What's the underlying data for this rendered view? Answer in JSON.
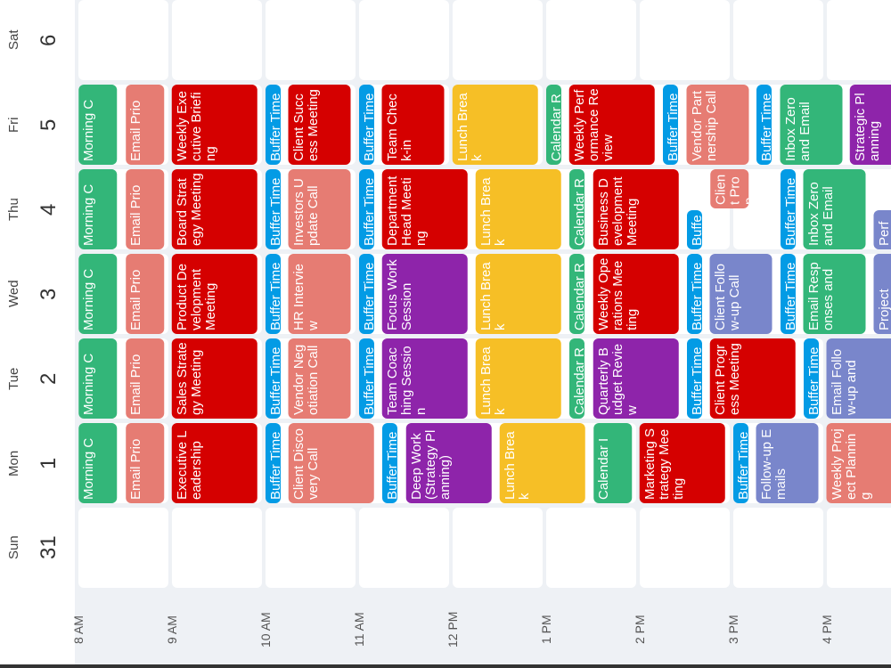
{
  "days": [
    {
      "name": "Sun",
      "number": 31,
      "events": []
    },
    {
      "name": "Mon",
      "number": 1,
      "events": [
        {
          "title": "Morning C"
        },
        {
          "title": "Email Prio"
        },
        {
          "title": "Executive Leadership"
        },
        {
          "title": "Buffer Time"
        },
        {
          "title": "Client Discovery Call"
        },
        {
          "title": "Buffer Time"
        },
        {
          "title": "Deep Work (Strategy Planning)"
        },
        {
          "title": "Lunch Break"
        },
        {
          "title": "Calendar I"
        },
        {
          "title": "Marketing Strategy Meeting"
        },
        {
          "title": "Buffer Time"
        },
        {
          "title": "Follow-up Emails"
        },
        {
          "title": "Weekly Project Planning"
        }
      ]
    },
    {
      "name": "Tue",
      "number": 2,
      "events": [
        {
          "title": "Morning C"
        },
        {
          "title": "Email Prio"
        },
        {
          "title": "Sales Strategy Meeting"
        },
        {
          "title": "Buffer Time"
        },
        {
          "title": "Vendor Negotiation Call"
        },
        {
          "title": "Buffer Time"
        },
        {
          "title": "Team Coaching Session"
        },
        {
          "title": "Lunch Break"
        },
        {
          "title": "Calendar Re"
        },
        {
          "title": "Quarterly Budget Review"
        },
        {
          "title": "Buffer Time"
        },
        {
          "title": "Client Progress Meeting"
        },
        {
          "title": "Buffer Time"
        },
        {
          "title": "Email Follow-up and"
        }
      ]
    },
    {
      "name": "Wed",
      "number": 3,
      "events": [
        {
          "title": "Morning C"
        },
        {
          "title": "Email Prio"
        },
        {
          "title": "Product Development Meeting"
        },
        {
          "title": "Buffer Time"
        },
        {
          "title": "HR Interview"
        },
        {
          "title": "Buffer Time"
        },
        {
          "title": "Focus Work Session"
        },
        {
          "title": "Lunch Break"
        },
        {
          "title": "Calendar Re"
        },
        {
          "title": "Weekly Operations Meeting"
        },
        {
          "title": "Buffer Time"
        },
        {
          "title": "Client Follow-up Call"
        },
        {
          "title": "Buffer Time"
        },
        {
          "title": "Email Responses and"
        },
        {
          "title": "Project"
        }
      ]
    },
    {
      "name": "Thu",
      "number": 4,
      "events": [
        {
          "title": "Morning C"
        },
        {
          "title": "Email Prio"
        },
        {
          "title": "Board Strategy Meeting"
        },
        {
          "title": "Buffer Time"
        },
        {
          "title": "Investors Update Call"
        },
        {
          "title": "Buffer Time"
        },
        {
          "title": "Department Head Meeting"
        },
        {
          "title": "Lunch Break"
        },
        {
          "title": "Calendar Re"
        },
        {
          "title": "Business Development Meeting"
        },
        {
          "title": "Buffe"
        },
        {
          "title": "Client Prop"
        },
        {
          "title": "Buffer Time"
        },
        {
          "title": "Inbox Zero and Email"
        },
        {
          "title": "Perf"
        }
      ]
    },
    {
      "name": "Fri",
      "number": 5,
      "events": [
        {
          "title": "Morning C"
        },
        {
          "title": "Email Prio"
        },
        {
          "title": "Weekly Executive Briefing"
        },
        {
          "title": "Buffer Time"
        },
        {
          "title": "Client Success Meeting"
        },
        {
          "title": "Buffer Time"
        },
        {
          "title": "Team Check-in"
        },
        {
          "title": "Lunch Break"
        },
        {
          "title": "Calendar Re"
        },
        {
          "title": "Weekly Performance Review"
        },
        {
          "title": "Buffer Time"
        },
        {
          "title": "Vendor Partnership Call"
        },
        {
          "title": "Buffer Time"
        },
        {
          "title": "Inbox Zero and Email"
        },
        {
          "title": "Strategic Planning"
        }
      ]
    },
    {
      "name": "Sat",
      "number": 6,
      "events": []
    }
  ],
  "time_labels": [
    "8 AM",
    "9 AM",
    "10 AM",
    "11 AM",
    "12 PM",
    "1 PM",
    "2 PM",
    "3 PM",
    "4 PM"
  ]
}
